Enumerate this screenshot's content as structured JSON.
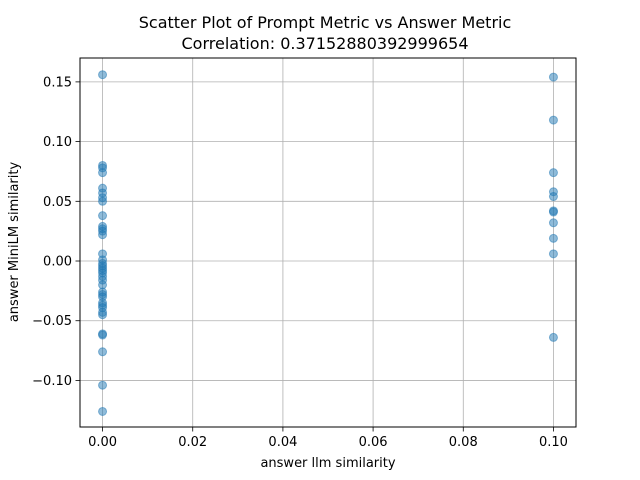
{
  "chart_data": {
    "type": "scatter",
    "title": "Scatter Plot of Prompt Metric vs Answer Metric",
    "subtitle": "Correlation: 0.37152880392999654",
    "xlabel": "answer llm similarity",
    "ylabel": "answer MiniLM similarity",
    "xlim": [
      -0.005,
      0.105
    ],
    "ylim": [
      -0.139,
      0.17
    ],
    "x_ticks": [
      {
        "value": 0.0,
        "label": "0.00"
      },
      {
        "value": 0.02,
        "label": "0.02"
      },
      {
        "value": 0.04,
        "label": "0.04"
      },
      {
        "value": 0.06,
        "label": "0.06"
      },
      {
        "value": 0.08,
        "label": "0.08"
      },
      {
        "value": 0.1,
        "label": "0.10"
      }
    ],
    "y_ticks": [
      {
        "value": -0.1,
        "label": "−0.10"
      },
      {
        "value": -0.05,
        "label": "−0.05"
      },
      {
        "value": 0.0,
        "label": "0.00"
      },
      {
        "value": 0.05,
        "label": "0.05"
      },
      {
        "value": 0.1,
        "label": "0.10"
      },
      {
        "value": 0.15,
        "label": "0.15"
      }
    ],
    "grid": true,
    "marker_color": "#1f77b4",
    "marker_alpha": 0.5,
    "points": [
      {
        "x": 0.0,
        "y": 0.156
      },
      {
        "x": 0.0,
        "y": 0.08
      },
      {
        "x": 0.0,
        "y": 0.078
      },
      {
        "x": 0.0,
        "y": 0.074
      },
      {
        "x": 0.0,
        "y": 0.061
      },
      {
        "x": 0.0,
        "y": 0.057
      },
      {
        "x": 0.0,
        "y": 0.053
      },
      {
        "x": 0.0,
        "y": 0.05
      },
      {
        "x": 0.0,
        "y": 0.038
      },
      {
        "x": 0.0,
        "y": 0.029
      },
      {
        "x": 0.0,
        "y": 0.027
      },
      {
        "x": 0.0,
        "y": 0.025
      },
      {
        "x": 0.0,
        "y": 0.022
      },
      {
        "x": 0.0,
        "y": 0.006
      },
      {
        "x": 0.0,
        "y": 0.001
      },
      {
        "x": 0.0,
        "y": -0.002
      },
      {
        "x": 0.0,
        "y": -0.004
      },
      {
        "x": 0.0,
        "y": -0.006
      },
      {
        "x": 0.0,
        "y": -0.008
      },
      {
        "x": 0.0,
        "y": -0.01
      },
      {
        "x": 0.0,
        "y": -0.013
      },
      {
        "x": 0.0,
        "y": -0.016
      },
      {
        "x": 0.0,
        "y": -0.02
      },
      {
        "x": 0.0,
        "y": -0.026
      },
      {
        "x": 0.0,
        "y": -0.028
      },
      {
        "x": 0.0,
        "y": -0.03
      },
      {
        "x": 0.0,
        "y": -0.035
      },
      {
        "x": 0.0,
        "y": -0.037
      },
      {
        "x": 0.0,
        "y": -0.039
      },
      {
        "x": 0.0,
        "y": -0.043
      },
      {
        "x": 0.0,
        "y": -0.045
      },
      {
        "x": 0.0,
        "y": -0.061
      },
      {
        "x": 0.0,
        "y": -0.062
      },
      {
        "x": 0.0,
        "y": -0.076
      },
      {
        "x": 0.0,
        "y": -0.104
      },
      {
        "x": 0.0,
        "y": -0.126
      },
      {
        "x": 0.1,
        "y": 0.154
      },
      {
        "x": 0.1,
        "y": 0.118
      },
      {
        "x": 0.1,
        "y": 0.074
      },
      {
        "x": 0.1,
        "y": 0.058
      },
      {
        "x": 0.1,
        "y": 0.054
      },
      {
        "x": 0.1,
        "y": 0.042
      },
      {
        "x": 0.1,
        "y": 0.041
      },
      {
        "x": 0.1,
        "y": 0.032
      },
      {
        "x": 0.1,
        "y": 0.019
      },
      {
        "x": 0.1,
        "y": 0.006
      },
      {
        "x": 0.1,
        "y": -0.064
      }
    ]
  }
}
